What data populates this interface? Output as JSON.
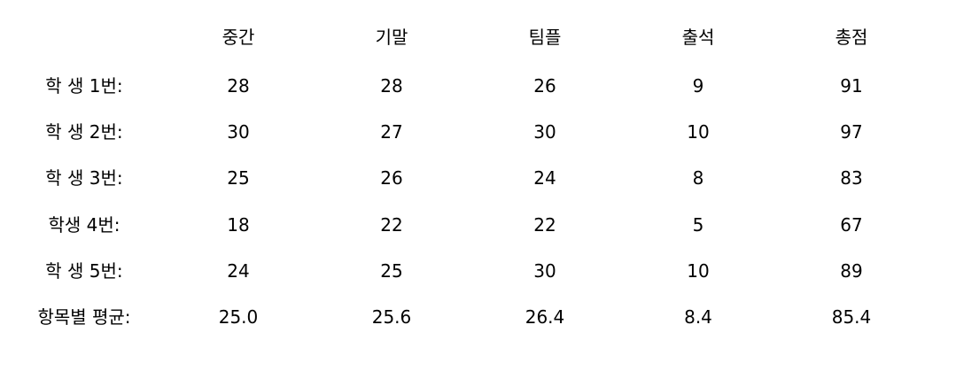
{
  "table": {
    "columns": [
      "중간",
      "기말",
      "팀플",
      "출석",
      "총점"
    ],
    "rows": [
      {
        "label": "학 생 1번:",
        "values": [
          "28",
          "28",
          "26",
          "9",
          "91"
        ]
      },
      {
        "label": "학 생 2번:",
        "values": [
          "30",
          "27",
          "30",
          "10",
          "97"
        ]
      },
      {
        "label": "학 생 3번:",
        "values": [
          "25",
          "26",
          "24",
          "8",
          "83"
        ]
      },
      {
        "label": "학생 4번:",
        "values": [
          "18",
          "22",
          "22",
          "5",
          "67"
        ]
      },
      {
        "label": "학 생 5번:",
        "values": [
          "24",
          "25",
          "30",
          "10",
          "89"
        ]
      }
    ],
    "average": {
      "label": "항목별 평균:",
      "values": [
        "25.0",
        "25.6",
        "26.4",
        "8.4",
        "85.4"
      ]
    }
  }
}
